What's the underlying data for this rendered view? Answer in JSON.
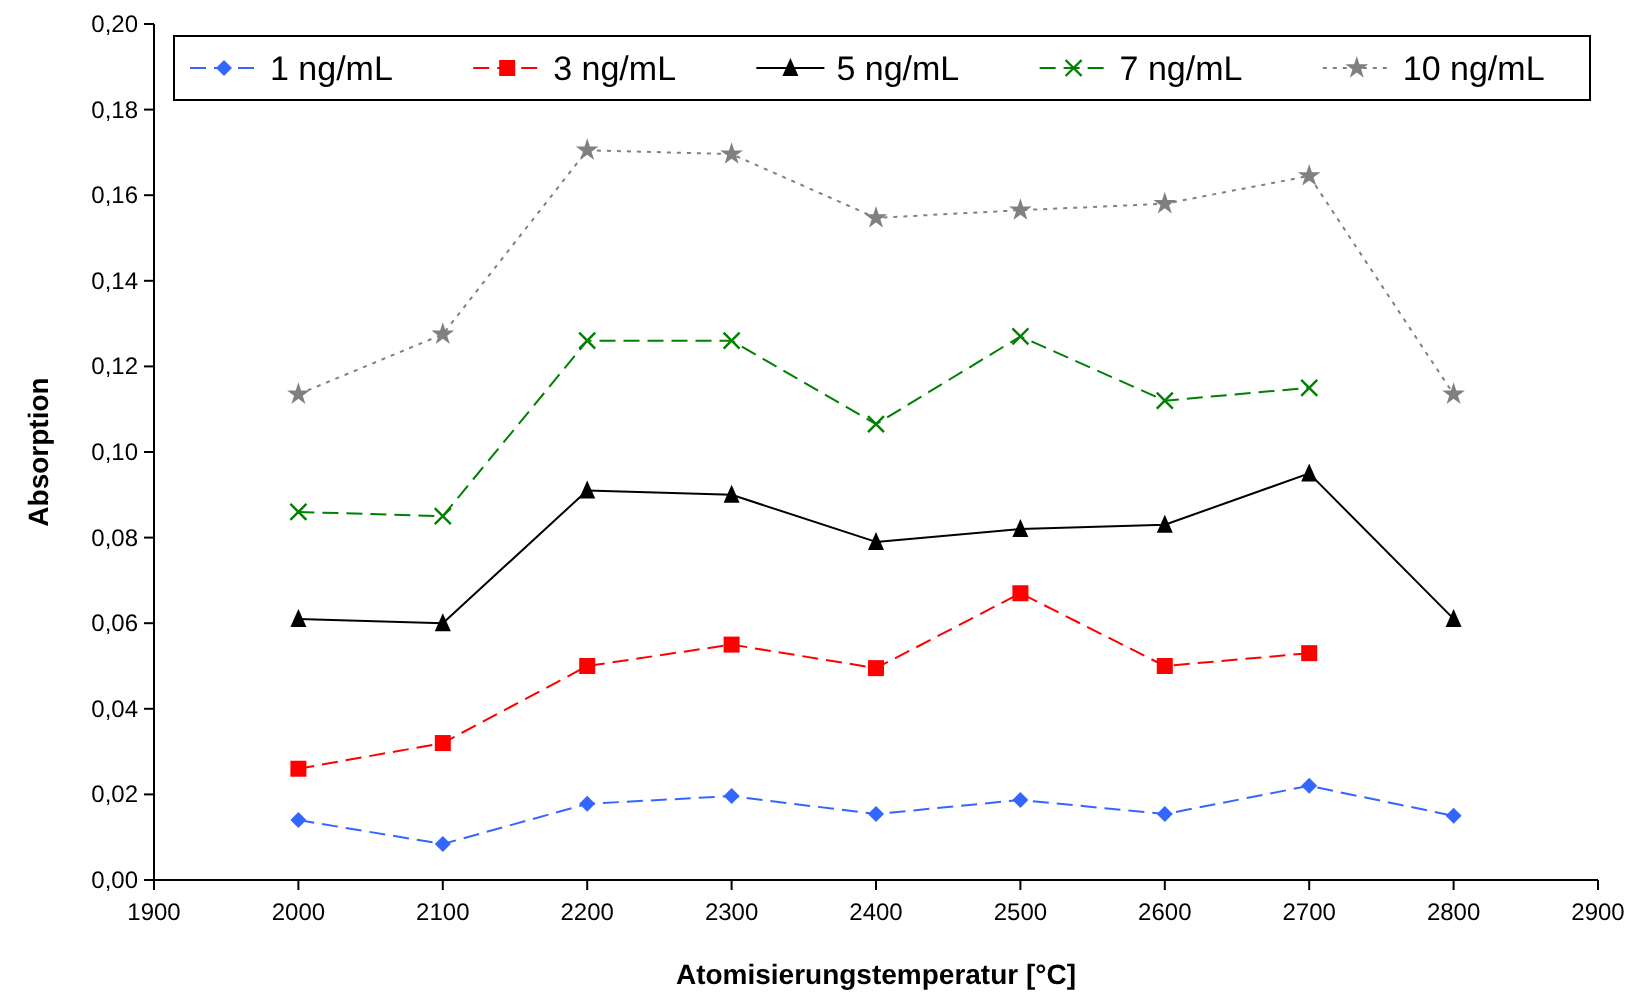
{
  "chart_data": {
    "type": "line",
    "xlabel": "Atomisierungstemperatur [°C]",
    "ylabel": "Absorption",
    "xlim": [
      1900,
      2900
    ],
    "xticks": [
      1900,
      2000,
      2100,
      2200,
      2300,
      2400,
      2500,
      2600,
      2700,
      2800,
      2900
    ],
    "ylim": [
      0,
      0.2
    ],
    "yticks": [
      {
        "value": 0,
        "label": "0,00"
      },
      {
        "value": 0.02,
        "label": "0,02"
      },
      {
        "value": 0.04,
        "label": "0,04"
      },
      {
        "value": 0.06,
        "label": "0,06"
      },
      {
        "value": 0.08,
        "label": "0,08"
      },
      {
        "value": 0.1,
        "label": "0,10"
      },
      {
        "value": 0.12,
        "label": "0,12"
      },
      {
        "value": 0.14,
        "label": "0,14"
      },
      {
        "value": 0.16,
        "label": "0,16"
      },
      {
        "value": 0.18,
        "label": "0,18"
      },
      {
        "value": 0.2,
        "label": "0,20"
      }
    ],
    "x": [
      2000,
      2100,
      2200,
      2300,
      2400,
      2500,
      2600,
      2700,
      2800
    ],
    "grid": false,
    "legend": "top",
    "series": [
      {
        "name": "1 ng/mL",
        "color": "#3366ff",
        "marker": "diamond",
        "line_style": "dashed",
        "values": [
          0.014,
          0.0084,
          0.0178,
          0.0196,
          0.0154,
          0.0187,
          0.0154,
          0.022,
          0.015
        ]
      },
      {
        "name": "3 ng/mL",
        "color": "#ff0000",
        "marker": "square",
        "line_style": "dashed",
        "values": [
          0.026,
          0.032,
          0.05,
          0.055,
          0.0495,
          0.067,
          0.05,
          0.053,
          null
        ]
      },
      {
        "name": "5 ng/mL",
        "color": "#000000",
        "marker": "triangle",
        "line_style": "solid",
        "values": [
          0.061,
          0.06,
          0.091,
          0.09,
          0.079,
          0.082,
          0.083,
          0.095,
          0.061
        ]
      },
      {
        "name": "7 ng/mL",
        "color": "#008000",
        "marker": "cross",
        "line_style": "dashed",
        "values": [
          0.086,
          0.085,
          0.126,
          0.126,
          0.1065,
          0.127,
          0.112,
          0.115,
          null
        ]
      },
      {
        "name": "10 ng/mL",
        "color": "#808080",
        "marker": "star",
        "line_style": "dotted",
        "values": [
          0.1135,
          0.1275,
          0.1705,
          0.1696,
          0.1547,
          0.1565,
          0.158,
          0.1645,
          0.1135
        ]
      }
    ]
  }
}
